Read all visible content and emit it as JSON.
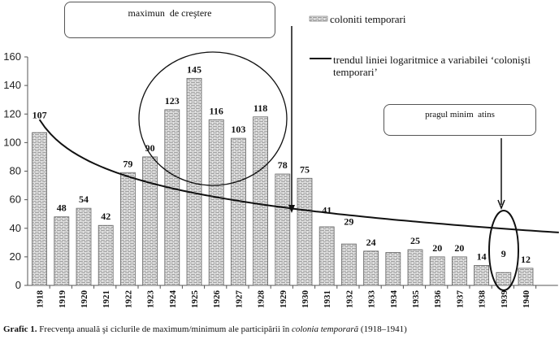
{
  "chart_data": {
    "type": "bar",
    "title": "",
    "xlabel": "",
    "ylabel": "",
    "ylim": [
      0,
      160
    ],
    "yticks": [
      "0",
      "20",
      "40",
      "60",
      "80",
      "100",
      "120",
      "140",
      "160"
    ],
    "categories": [
      "1918",
      "1919",
      "1920",
      "1921",
      "1922",
      "1923",
      "1924",
      "1925",
      "1926",
      "1927",
      "1928",
      "1929",
      "1930",
      "1931",
      "1932",
      "1933",
      "1934",
      "1935",
      "1936",
      "1937",
      "1938",
      "1939",
      "1940"
    ],
    "series": [
      {
        "name": "coloniti temporari",
        "values": [
          107,
          48,
          54,
          42,
          79,
          90,
          123,
          145,
          116,
          103,
          118,
          78,
          75,
          41,
          29,
          24,
          23,
          25,
          20,
          20,
          14,
          9,
          12
        ]
      }
    ],
    "data_labels": [
      "107",
      "48",
      "54",
      "42",
      "79",
      "90",
      "123",
      "145",
      "116",
      "103",
      "118",
      "78",
      "75",
      "41",
      "29",
      "24",
      "",
      "25",
      "20",
      "20",
      "14",
      "9",
      "12"
    ],
    "trendline": {
      "name": "trendul liniei logaritmice a variabilei ‘colonişti temporari’",
      "type": "logarithmic"
    },
    "legend": [
      "coloniti temporari",
      "trendul liniei logaritmice a variabilei ‘colonişti temporari’"
    ],
    "legend_position": "top-right",
    "annotations": [
      "maximun  de creştere",
      "pragul minim  atins"
    ]
  },
  "caption": {
    "label": "Grafic 1.",
    "text": " Frecvenţa anuală şi ciclurile de maximum/minimum ale participării în ",
    "italic": "colonia temporară",
    "end": " (1918–1941)"
  }
}
